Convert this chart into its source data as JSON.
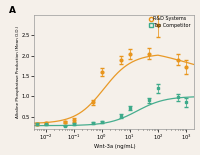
{
  "title_letter": "A",
  "xlabel": "Wnt-3a (ng/mL)",
  "ylabel": "Alkaline Phosphatase Production (Mean O.D.)",
  "ylim": [
    0.2,
    3.0
  ],
  "yticks": [
    0.5,
    1.0,
    1.5,
    2.0,
    2.5
  ],
  "ytick_labels": [
    "0.5",
    "1.0",
    "1.5",
    "2.0",
    "2.5"
  ],
  "orange_color": "#E8951D",
  "teal_color": "#3DAA8A",
  "legend_labels": [
    "R&D Systems",
    "Top Competitor"
  ],
  "orange_x": [
    0.005,
    0.01,
    0.05,
    0.1,
    0.5,
    1.0,
    5.0,
    10.0,
    50.0,
    100.0,
    500.0,
    1000.0
  ],
  "orange_y": [
    0.33,
    0.34,
    0.36,
    0.42,
    0.85,
    1.6,
    1.9,
    2.05,
    2.05,
    2.75,
    1.9,
    1.72
  ],
  "orange_err": [
    0.025,
    0.02,
    0.025,
    0.04,
    0.06,
    0.09,
    0.1,
    0.12,
    0.14,
    0.28,
    0.14,
    0.18
  ],
  "teal_x": [
    0.005,
    0.01,
    0.05,
    0.1,
    0.5,
    1.0,
    5.0,
    10.0,
    50.0,
    100.0,
    500.0,
    1000.0
  ],
  "teal_y": [
    0.32,
    0.31,
    0.28,
    0.31,
    0.34,
    0.37,
    0.52,
    0.72,
    0.9,
    1.2,
    0.98,
    0.85
  ],
  "teal_err": [
    0.02,
    0.02,
    0.02,
    0.025,
    0.03,
    0.03,
    0.04,
    0.055,
    0.07,
    0.11,
    0.09,
    0.1
  ],
  "bg_color": "#f5f0ea"
}
